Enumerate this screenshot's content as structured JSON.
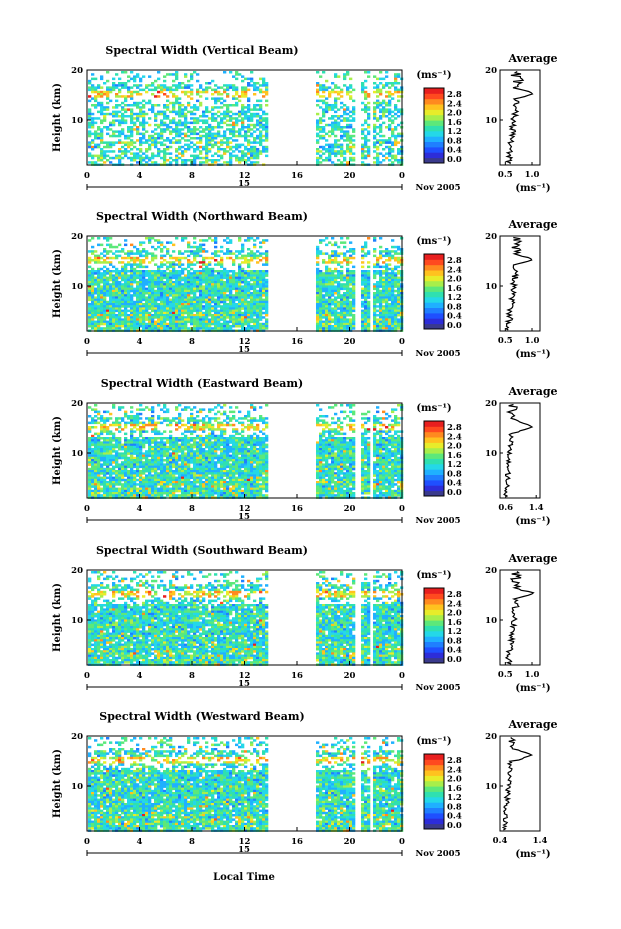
{
  "figure": {
    "xlabel": "Local Time",
    "date_label": "Nov 2005",
    "ylabel": "Height (km)",
    "colorbar_unit": "(ms⁻¹)",
    "colorbar_ticks": [
      "2.8",
      "2.4",
      "2.0",
      "1.6",
      "1.2",
      "0.8",
      "0.4",
      "0.0"
    ],
    "avg_title": "Average",
    "avg_unit": "(ms⁻¹)",
    "time_ticks": [
      "0",
      "4",
      "8",
      "12",
      "16",
      "20",
      "0"
    ],
    "day_label": "15",
    "height_ticks": [
      "20",
      "10"
    ]
  },
  "chart_data": [
    {
      "type": "heatmap",
      "title": "Spectral Width (Vertical Beam)",
      "ylabel": "Height (km)",
      "xlabel": "Local Time",
      "xlim": [
        0,
        24
      ],
      "ylim": [
        1,
        20
      ],
      "data_gaps_hours": [
        [
          13.6,
          17.4
        ],
        [
          20.4,
          20.7
        ],
        [
          21.4,
          21.7
        ]
      ],
      "colorbar_range": [
        0.0,
        3.0
      ],
      "average_profile": {
        "xticks": [
          "0.5",
          "1.0"
        ],
        "xlim": [
          0.4,
          1.15
        ],
        "peak_height_km": 15.3,
        "peak_value": 1.05,
        "low_value": 0.5
      }
    },
    {
      "type": "heatmap",
      "title": "Spectral Width (Northward Beam)",
      "ylabel": "Height (km)",
      "xlabel": "Local Time",
      "xlim": [
        0,
        24
      ],
      "ylim": [
        1,
        20
      ],
      "data_gaps_hours": [
        [
          13.6,
          17.4
        ],
        [
          20.4,
          20.7
        ],
        [
          21.4,
          21.7
        ]
      ],
      "colorbar_range": [
        0.0,
        3.0
      ],
      "average_profile": {
        "xticks": [
          "0.5",
          "1.0"
        ],
        "xlim": [
          0.4,
          1.15
        ],
        "peak_height_km": 15.3,
        "peak_value": 1.05,
        "low_value": 0.5
      }
    },
    {
      "type": "heatmap",
      "title": "Spectral Width (Eastward Beam)",
      "ylabel": "Height (km)",
      "xlabel": "Local Time",
      "xlim": [
        0,
        24
      ],
      "ylim": [
        1,
        20
      ],
      "data_gaps_hours": [
        [
          13.6,
          17.4
        ],
        [
          20.4,
          20.7
        ],
        [
          21.4,
          21.7
        ]
      ],
      "colorbar_range": [
        0.0,
        3.0
      ],
      "average_profile": {
        "xticks": [
          "0.6",
          "1.4"
        ],
        "xlim": [
          0.45,
          1.5
        ],
        "peak_height_km": 15.3,
        "peak_value": 1.3,
        "low_value": 0.55
      }
    },
    {
      "type": "heatmap",
      "title": "Spectral Width (Southward Beam)",
      "ylabel": "Height (km)",
      "xlabel": "Local Time",
      "xlim": [
        0,
        24
      ],
      "ylim": [
        1,
        20
      ],
      "data_gaps_hours": [
        [
          13.6,
          17.4
        ],
        [
          20.4,
          20.7
        ],
        [
          21.4,
          21.7
        ]
      ],
      "colorbar_range": [
        0.0,
        3.0
      ],
      "average_profile": {
        "xticks": [
          "0.5",
          "1.0"
        ],
        "xlim": [
          0.4,
          1.15
        ],
        "peak_height_km": 15.3,
        "peak_value": 1.05,
        "low_value": 0.5
      }
    },
    {
      "type": "heatmap",
      "title": "Spectral Width (Westward Beam)",
      "ylabel": "Height (km)",
      "xlabel": "Local Time",
      "xlim": [
        0,
        24
      ],
      "ylim": [
        1,
        20
      ],
      "data_gaps_hours": [
        [
          13.6,
          17.4
        ],
        [
          20.4,
          20.7
        ],
        [
          21.4,
          21.7
        ]
      ],
      "colorbar_range": [
        0.0,
        3.0
      ],
      "average_profile": {
        "xticks": [
          "0.4",
          "1.4"
        ],
        "xlim": [
          0.4,
          1.4
        ],
        "peak_height_km": 16.2,
        "peak_value": 1.2,
        "low_value": 0.45
      }
    }
  ],
  "colors": {
    "colormap": [
      "#3a3a8c",
      "#2d2dd9",
      "#1f4fff",
      "#1f7fff",
      "#1fb0ff",
      "#24d8e8",
      "#2fe0b0",
      "#5ce87a",
      "#a8ee4a",
      "#e8ec2a",
      "#ffc21f",
      "#ff8a1f",
      "#ff4a1f",
      "#e81f1f"
    ],
    "background": "#ffffff",
    "axes": "#000000",
    "profile_line": "#000000"
  }
}
